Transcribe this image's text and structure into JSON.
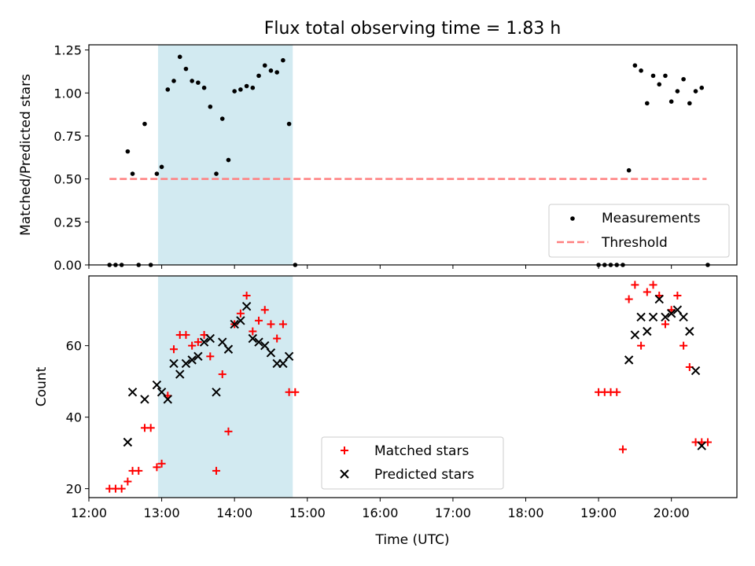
{
  "figure": {
    "title": "Flux total observing time = 1.83 h",
    "xlabel": "Time (UTC)"
  },
  "colors": {
    "shade": "#add8e6",
    "threshold": "#ff7f7f",
    "matched": "#ff0000",
    "predicted": "#000000",
    "measurement": "#000000"
  },
  "chart_data": [
    {
      "type": "scatter",
      "ylabel": "Matched/Predicted stars",
      "ylim": [
        0,
        1.28
      ],
      "xlim_hours": [
        12.0,
        20.9
      ],
      "yticks": [
        0.0,
        0.25,
        0.5,
        0.75,
        1.0,
        1.25
      ],
      "ytick_labels": [
        "0.00",
        "0.25",
        "0.50",
        "0.75",
        "1.00",
        "1.25"
      ],
      "shaded_span": [
        "12:57",
        "14:48"
      ],
      "legend_position": "lower right",
      "series": [
        {
          "name": "Measurements",
          "marker": "dot",
          "x": [
            "12:17",
            "12:22",
            "12:27",
            "12:32",
            "12:36",
            "12:41",
            "12:46",
            "12:51",
            "12:56",
            "13:00",
            "13:05",
            "13:10",
            "13:15",
            "13:20",
            "13:25",
            "13:30",
            "13:35",
            "13:40",
            "13:45",
            "13:50",
            "13:55",
            "14:00",
            "14:05",
            "14:10",
            "14:15",
            "14:20",
            "14:25",
            "14:30",
            "14:35",
            "14:40",
            "14:45",
            "14:50",
            "19:00",
            "19:05",
            "19:10",
            "19:15",
            "19:20",
            "19:25",
            "19:30",
            "19:35",
            "19:40",
            "19:45",
            "19:50",
            "19:55",
            "20:00",
            "20:05",
            "20:10",
            "20:15",
            "20:20",
            "20:25",
            "20:30"
          ],
          "y": [
            0.0,
            0.0,
            0.0,
            0.66,
            0.53,
            0.0,
            0.82,
            0.0,
            0.53,
            0.57,
            1.02,
            1.07,
            1.21,
            1.14,
            1.07,
            1.06,
            1.03,
            0.92,
            0.53,
            0.85,
            0.61,
            1.01,
            1.02,
            1.04,
            1.03,
            1.1,
            1.16,
            1.13,
            1.12,
            1.19,
            0.82,
            0.0,
            0.0,
            0.0,
            0.0,
            0.0,
            0.0,
            0.55,
            1.16,
            1.13,
            0.94,
            1.1,
            1.05,
            1.1,
            0.95,
            1.01,
            1.08,
            0.94,
            1.01,
            1.03,
            0.0
          ]
        },
        {
          "name": "Threshold",
          "type": "line",
          "style": "dashed",
          "x": [
            "12:17",
            "20:29"
          ],
          "y": [
            0.5,
            0.5
          ]
        }
      ]
    },
    {
      "type": "scatter",
      "ylabel": "Count",
      "ylim": [
        17.5,
        79.5
      ],
      "xlim_hours": [
        12.0,
        20.9
      ],
      "yticks": [
        20,
        40,
        60
      ],
      "ytick_labels": [
        "20",
        "40",
        "60"
      ],
      "xticks": [
        "12:00",
        "13:00",
        "14:00",
        "15:00",
        "16:00",
        "17:00",
        "18:00",
        "19:00",
        "20:00"
      ],
      "shaded_span": [
        "12:57",
        "14:48"
      ],
      "legend_position": "lower center",
      "series": [
        {
          "name": "Matched stars",
          "marker": "plus",
          "x": [
            "12:17",
            "12:22",
            "12:27",
            "12:32",
            "12:36",
            "12:41",
            "12:46",
            "12:51",
            "12:56",
            "13:00",
            "13:05",
            "13:10",
            "13:15",
            "13:20",
            "13:25",
            "13:30",
            "13:35",
            "13:40",
            "13:45",
            "13:50",
            "13:55",
            "14:00",
            "14:05",
            "14:10",
            "14:15",
            "14:20",
            "14:25",
            "14:30",
            "14:35",
            "14:40",
            "14:45",
            "14:50",
            "19:00",
            "19:05",
            "19:10",
            "19:15",
            "19:20",
            "19:25",
            "19:30",
            "19:35",
            "19:40",
            "19:45",
            "19:50",
            "19:55",
            "20:00",
            "20:05",
            "20:10",
            "20:15",
            "20:20",
            "20:25",
            "20:30"
          ],
          "y": [
            20,
            20,
            20,
            22,
            25,
            25,
            37,
            37,
            26,
            27,
            46,
            59,
            63,
            63,
            60,
            61,
            63,
            57,
            25,
            52,
            36,
            66,
            69,
            74,
            64,
            67,
            70,
            66,
            62,
            66,
            47,
            47,
            47,
            47,
            47,
            47,
            31,
            73,
            77,
            60,
            75,
            77,
            74,
            66,
            70,
            74,
            60,
            54,
            33,
            33,
            33
          ]
        },
        {
          "name": "Predicted stars",
          "marker": "x",
          "x": [
            "12:32",
            "12:36",
            "12:46",
            "12:56",
            "13:00",
            "13:05",
            "13:10",
            "13:15",
            "13:20",
            "13:25",
            "13:30",
            "13:35",
            "13:40",
            "13:45",
            "13:50",
            "13:55",
            "14:00",
            "14:05",
            "14:10",
            "14:15",
            "14:20",
            "14:25",
            "14:30",
            "14:35",
            "14:40",
            "14:45",
            "19:25",
            "19:30",
            "19:35",
            "19:40",
            "19:45",
            "19:50",
            "19:55",
            "20:00",
            "20:05",
            "20:10",
            "20:15",
            "20:20",
            "20:25"
          ],
          "y": [
            33,
            47,
            45,
            49,
            47,
            45,
            55,
            52,
            55,
            56,
            57,
            61,
            62,
            47,
            61,
            59,
            66,
            67,
            71,
            62,
            61,
            60,
            58,
            55,
            55,
            57,
            56,
            63,
            68,
            64,
            68,
            73,
            68,
            69,
            70,
            68,
            64,
            53,
            32
          ]
        }
      ]
    }
  ]
}
